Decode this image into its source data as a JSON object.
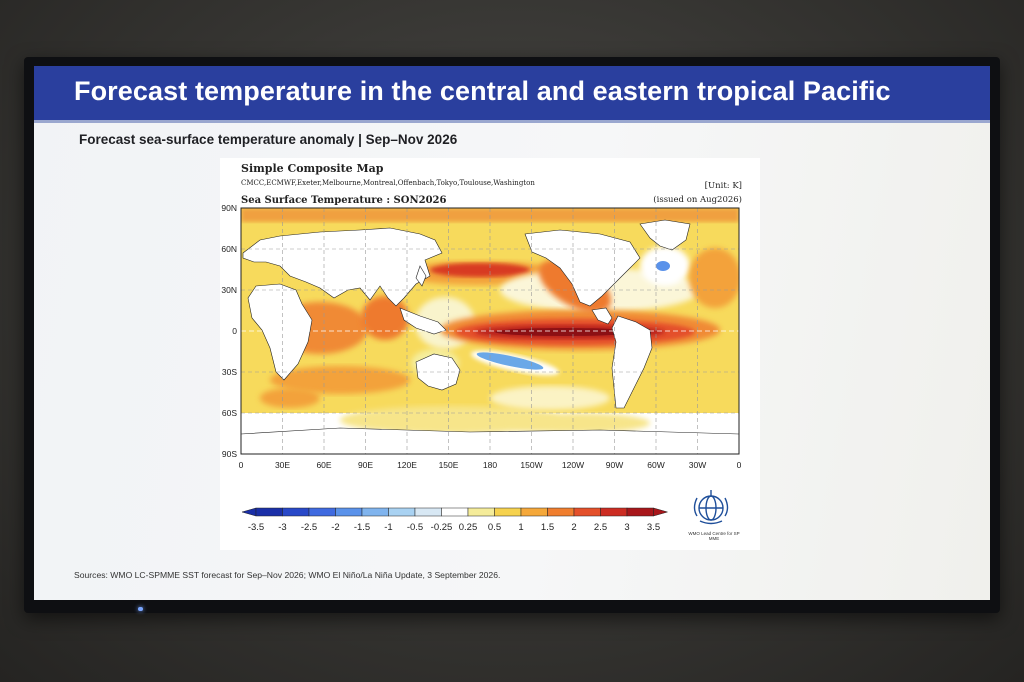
{
  "slide": {
    "title": "Forecast temperature in the central and eastern tropical Pacific",
    "subtitle": "Forecast sea-surface temperature anomaly | Sep–Nov 2026",
    "sources": "Sources: WMO LC-SPMME SST forecast for Sep–Nov 2026; WMO El Niño/La Niña Update, 3 September 2026.",
    "logo_caption": "WMO Lead Centre for SP MME"
  },
  "map": {
    "header": "Simple Composite Map",
    "models": "CMCC,ECMWF,Exeter,Melbourne,Montreal,Offenbach,Tokyo,Toulouse,Washington",
    "unit": "[Unit: K]",
    "variable": "Sea Surface Temperature : SON2026",
    "issued": "(issued on Aug2026)",
    "lat_labels": [
      "90N",
      "60N",
      "30N",
      "0",
      "30S",
      "60S",
      "90S"
    ],
    "lon_labels": [
      "0",
      "30E",
      "60E",
      "90E",
      "120E",
      "150E",
      "180",
      "150W",
      "120W",
      "90W",
      "60W",
      "30W",
      "0"
    ],
    "colorbar": {
      "ticks": [
        "-3.5",
        "-3",
        "-2.5",
        "-2",
        "-1.5",
        "-1",
        "-0.5",
        "-0.25",
        "0.25",
        "0.5",
        "1",
        "1.5",
        "2",
        "2.5",
        "3",
        "3.5"
      ],
      "colors": [
        "#1a2fa8",
        "#2848c8",
        "#3f6ae0",
        "#5a92ea",
        "#80b4ee",
        "#a9d2f2",
        "#d8e8f4",
        "#ffffff",
        "#f5ec9a",
        "#f6d24e",
        "#f5a83a",
        "#f07e2e",
        "#e4502a",
        "#cc2c22",
        "#a8161a"
      ]
    }
  }
}
